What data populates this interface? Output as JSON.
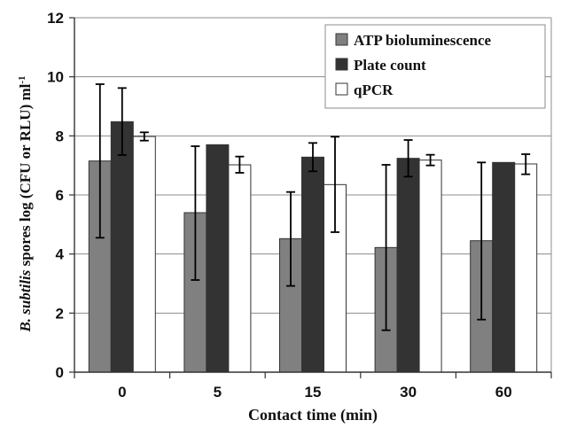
{
  "chart_data": {
    "type": "bar",
    "categories": [
      "0",
      "5",
      "15",
      "30",
      "60"
    ],
    "series": [
      {
        "name": "ATP bioluminescence",
        "values": [
          7.15,
          5.4,
          4.52,
          4.22,
          4.45
        ],
        "error_low": [
          4.55,
          3.12,
          2.92,
          1.42,
          1.78
        ],
        "error_high": [
          9.75,
          7.65,
          6.1,
          7.02,
          7.1
        ],
        "color": "#808080"
      },
      {
        "name": "Plate count",
        "values": [
          8.48,
          7.7,
          7.28,
          7.24,
          7.1
        ],
        "error_low": [
          7.35,
          null,
          6.8,
          6.62,
          null
        ],
        "error_high": [
          9.62,
          null,
          7.76,
          7.86,
          null
        ],
        "color": "#333333"
      },
      {
        "name": "qPCR",
        "values": [
          7.98,
          7.02,
          6.35,
          7.18,
          7.05
        ],
        "error_low": [
          7.84,
          6.75,
          4.74,
          7.0,
          6.7
        ],
        "error_high": [
          8.12,
          7.3,
          7.97,
          7.36,
          7.38
        ],
        "color": "#ffffff"
      }
    ],
    "xlabel": "Contact time (min)",
    "ylabel_italic": "B. subtilis",
    "ylabel_rest": " spores  log (CFU or RLU) ml",
    "ylabel_sup": "-1",
    "ylim": [
      0,
      12
    ],
    "yticks": [
      "0",
      "2",
      "4",
      "6",
      "8",
      "10",
      "12"
    ],
    "grid": true,
    "legend_position": "top-right"
  }
}
